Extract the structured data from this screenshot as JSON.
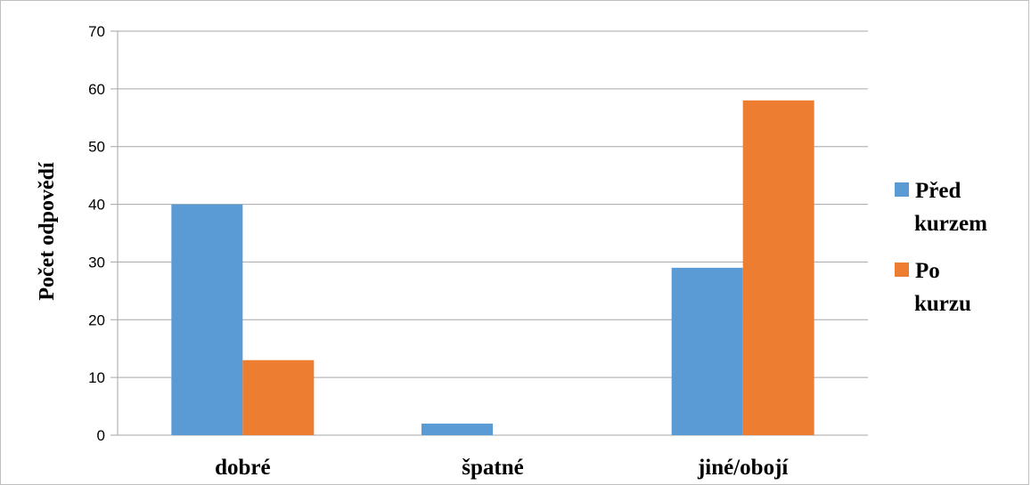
{
  "chart_data": {
    "type": "bar",
    "categories": [
      "dobré",
      "špatné",
      "jiné/obojí"
    ],
    "series": [
      {
        "name": "Před kurzem",
        "values": [
          40,
          2,
          29
        ],
        "color": "#5b9bd5"
      },
      {
        "name": "Po kurzu",
        "values": [
          13,
          0,
          58
        ],
        "color": "#ed7d31"
      }
    ],
    "ylabel": "Počet odpovědí",
    "xlabel": "",
    "ylim": [
      0,
      70
    ],
    "yticks": [
      0,
      10,
      20,
      30,
      40,
      50,
      60,
      70
    ],
    "grid": true,
    "legend_position": "right",
    "legend_lines": [
      [
        "Před",
        "kurzem"
      ],
      [
        "Po",
        "kurzu"
      ]
    ]
  }
}
